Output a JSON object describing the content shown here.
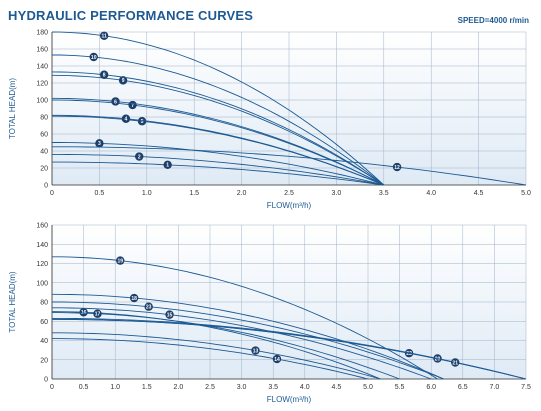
{
  "header": {
    "title": "HYDRAULIC PERFORMANCE CURVES",
    "speed_label": "SPEED=4000 r/min"
  },
  "colors": {
    "curve": "#1d5a93",
    "marker": "#1d3f6a",
    "grid": "#9fb3c8",
    "plot_bg_top": "#ffffff",
    "plot_bg_bottom": "#dfeaf5"
  },
  "chart_data": [
    {
      "type": "line",
      "title": "",
      "xlabel": "FLOW(m³/h)",
      "ylabel": "TOTAL HEAD(m)",
      "xlim": [
        0,
        5.0
      ],
      "ylim": [
        0,
        180
      ],
      "xticks": [
        "0",
        "0.5",
        "1.0",
        "1.5",
        "2.0",
        "2.5",
        "3.0",
        "3.5",
        "4.0",
        "4.5",
        "5.0"
      ],
      "yticks": [
        "0",
        "20",
        "40",
        "60",
        "80",
        "100",
        "120",
        "140",
        "160",
        "180"
      ],
      "grid": true,
      "series": [
        {
          "name": "1",
          "shutoff": 27,
          "qmax": 3.5,
          "label_x": 1.22
        },
        {
          "name": "2",
          "shutoff": 36,
          "qmax": 3.5,
          "label_x": 0.92
        },
        {
          "name": "3",
          "shutoff": 50,
          "qmax": 3.5,
          "label_x": 0.5
        },
        {
          "name": "5",
          "shutoff": 81,
          "qmax": 3.5,
          "label_x": 0.95
        },
        {
          "name": "4",
          "shutoff": 82,
          "qmax": 3.5,
          "label_x": 0.78
        },
        {
          "name": "7",
          "shutoff": 100,
          "qmax": 3.5,
          "label_x": 0.85
        },
        {
          "name": "6",
          "shutoff": 102,
          "qmax": 3.5,
          "label_x": 0.67
        },
        {
          "name": "9",
          "shutoff": 129,
          "qmax": 3.5,
          "label_x": 0.75
        },
        {
          "name": "8",
          "shutoff": 133,
          "qmax": 3.5,
          "label_x": 0.55
        },
        {
          "name": "10",
          "shutoff": 153,
          "qmax": 3.5,
          "label_x": 0.44
        },
        {
          "name": "11",
          "shutoff": 180,
          "qmax": 3.5,
          "label_x": 0.55
        },
        {
          "name": "12",
          "shutoff": 45,
          "qmax": 5.0,
          "label_x": 3.64
        }
      ]
    },
    {
      "type": "line",
      "title": "",
      "xlabel": "FLOW(m³/h)",
      "ylabel": "TOTAL HEAD(m)",
      "xlim": [
        0,
        7.5
      ],
      "ylim": [
        0,
        160
      ],
      "xticks": [
        "0",
        "0.5",
        "1.0",
        "1.5",
        "2.0",
        "2.5",
        "3.0",
        "3.5",
        "4.0",
        "4.5",
        "5.0",
        "5.5",
        "6.0",
        "6.5",
        "7.0",
        "7.5"
      ],
      "yticks": [
        "0",
        "20",
        "40",
        "60",
        "80",
        "100",
        "120",
        "140",
        "160"
      ],
      "grid": true,
      "series": [
        {
          "name": "13",
          "shutoff": 48,
          "qmax": 5.2,
          "label_x": 3.22
        },
        {
          "name": "14",
          "shutoff": 42,
          "qmax": 5.0,
          "label_x": 3.56
        },
        {
          "name": "16",
          "shutoff": 70,
          "qmax": 5.2,
          "label_x": 0.5
        },
        {
          "name": "17",
          "shutoff": 69,
          "qmax": 5.5,
          "label_x": 0.72
        },
        {
          "name": "15",
          "shutoff": 74,
          "qmax": 6.0,
          "label_x": 1.86
        },
        {
          "name": "23",
          "shutoff": 80,
          "qmax": 6.2,
          "label_x": 1.53
        },
        {
          "name": "18",
          "shutoff": 88,
          "qmax": 6.2,
          "label_x": 1.3
        },
        {
          "name": "19",
          "shutoff": 127,
          "qmax": 6.1,
          "label_x": 1.08
        },
        {
          "name": "22",
          "shutoff": 62,
          "qmax": 7.5,
          "label_x": 5.65
        },
        {
          "name": "20",
          "shutoff": 63,
          "qmax": 7.5,
          "label_x": 6.1
        },
        {
          "name": "21",
          "shutoff": 62,
          "qmax": 7.5,
          "label_x": 6.38
        }
      ]
    }
  ]
}
